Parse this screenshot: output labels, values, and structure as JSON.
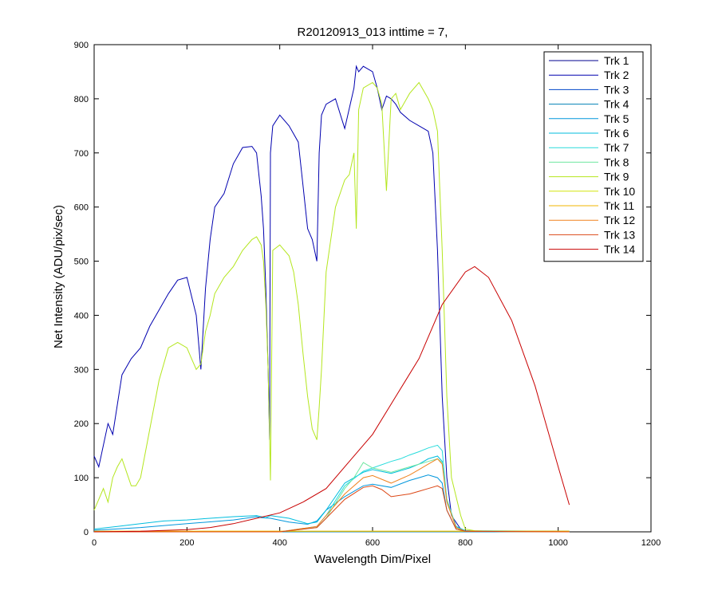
{
  "chart_data": {
    "type": "line",
    "title": "R20120913_013 inttime = 7,",
    "xlabel": "Wavelength Dim/Pixel",
    "ylabel": "Net Intensity (ADU/pix/sec)",
    "xlim": [
      0,
      1200
    ],
    "ylim": [
      0,
      900
    ],
    "xticks": [
      0,
      200,
      400,
      600,
      800,
      1000,
      1200
    ],
    "yticks": [
      0,
      100,
      200,
      300,
      400,
      500,
      600,
      700,
      800,
      900
    ],
    "grid": false,
    "legend_position": "top-right",
    "series": [
      {
        "name": "Trk 1",
        "color": "#00008f",
        "x": [
          0,
          500,
          1024
        ],
        "y": [
          0,
          0,
          0
        ]
      },
      {
        "name": "Trk 2",
        "color": "#0000af",
        "x": [
          0,
          10,
          30,
          40,
          60,
          80,
          100,
          120,
          140,
          160,
          180,
          200,
          220,
          230,
          240,
          250,
          260,
          280,
          300,
          320,
          340,
          350,
          360,
          365,
          370,
          375,
          378,
          380,
          385,
          400,
          420,
          440,
          450,
          460,
          470,
          480,
          485,
          490,
          500,
          520,
          540,
          560,
          565,
          570,
          580,
          600,
          610,
          620,
          630,
          640,
          650,
          660,
          680,
          700,
          720,
          730,
          740,
          750,
          760,
          770,
          790,
          800,
          820,
          850,
          900,
          950,
          1000,
          1024
        ],
        "y": [
          140,
          120,
          200,
          180,
          290,
          320,
          340,
          380,
          410,
          440,
          465,
          470,
          400,
          300,
          450,
          540,
          600,
          625,
          680,
          710,
          712,
          700,
          620,
          560,
          450,
          300,
          170,
          700,
          750,
          770,
          750,
          720,
          640,
          560,
          540,
          500,
          700,
          770,
          790,
          800,
          745,
          820,
          860,
          850,
          860,
          850,
          820,
          780,
          805,
          800,
          790,
          775,
          760,
          750,
          740,
          700,
          520,
          250,
          100,
          30,
          5,
          2,
          1,
          1,
          1,
          1,
          1,
          1
        ]
      },
      {
        "name": "Trk 3",
        "color": "#0046c8",
        "x": [
          0,
          500,
          1024
        ],
        "y": [
          0,
          0,
          0
        ]
      },
      {
        "name": "Trk 4",
        "color": "#0080b4",
        "x": [
          0,
          500,
          1024
        ],
        "y": [
          0,
          0,
          0
        ]
      },
      {
        "name": "Trk 5",
        "color": "#0096dc",
        "x": [
          0,
          100,
          200,
          300,
          350,
          360,
          380,
          420,
          460,
          480,
          500,
          540,
          580,
          600,
          640,
          680,
          700,
          720,
          740,
          750,
          760,
          780,
          800,
          1024
        ],
        "y": [
          3,
          8,
          15,
          22,
          28,
          26,
          25,
          18,
          14,
          20,
          40,
          65,
          85,
          88,
          82,
          95,
          100,
          105,
          100,
          90,
          40,
          5,
          1,
          1
        ]
      },
      {
        "name": "Trk 6",
        "color": "#00bede",
        "x": [
          0,
          50,
          100,
          150,
          200,
          250,
          300,
          350,
          370,
          380,
          420,
          460,
          480,
          500,
          540,
          580,
          600,
          640,
          680,
          700,
          720,
          740,
          750,
          760,
          780,
          800,
          1024
        ],
        "y": [
          5,
          10,
          15,
          20,
          22,
          25,
          28,
          30,
          26,
          30,
          25,
          15,
          18,
          40,
          90,
          110,
          115,
          108,
          118,
          125,
          135,
          140,
          130,
          60,
          10,
          2,
          1
        ]
      },
      {
        "name": "Trk 7",
        "color": "#28dcdc",
        "x": [
          0,
          400,
          480,
          500,
          540,
          580,
          600,
          640,
          660,
          680,
          700,
          720,
          740,
          750,
          760,
          780,
          800,
          1024
        ],
        "y": [
          0,
          0,
          10,
          30,
          85,
          112,
          118,
          130,
          135,
          142,
          148,
          155,
          160,
          150,
          60,
          8,
          1,
          0
        ]
      },
      {
        "name": "Trk 8",
        "color": "#6ee6a0",
        "x": [
          0,
          400,
          480,
          500,
          540,
          560,
          580,
          600,
          640,
          680,
          700,
          720,
          740,
          750,
          760,
          780,
          800,
          1024
        ],
        "y": [
          0,
          0,
          8,
          25,
          80,
          100,
          128,
          118,
          110,
          120,
          125,
          130,
          135,
          128,
          60,
          8,
          1,
          0
        ]
      },
      {
        "name": "Trk 9",
        "color": "#b4e61e",
        "x": [
          0,
          10,
          20,
          30,
          40,
          50,
          60,
          70,
          80,
          90,
          100,
          120,
          140,
          160,
          180,
          200,
          210,
          220,
          230,
          240,
          250,
          260,
          280,
          300,
          320,
          340,
          350,
          360,
          365,
          370,
          375,
          378,
          380,
          385,
          400,
          420,
          430,
          440,
          450,
          460,
          470,
          480,
          485,
          490,
          500,
          520,
          540,
          550,
          560,
          565,
          570,
          580,
          600,
          610,
          620,
          630,
          640,
          650,
          660,
          680,
          700,
          720,
          730,
          740,
          750,
          760,
          770,
          790,
          800,
          820,
          850,
          900,
          1024
        ],
        "y": [
          40,
          60,
          80,
          55,
          100,
          120,
          135,
          110,
          85,
          85,
          100,
          190,
          280,
          340,
          350,
          340,
          320,
          300,
          310,
          370,
          400,
          440,
          470,
          490,
          520,
          540,
          545,
          530,
          500,
          420,
          300,
          180,
          95,
          520,
          530,
          510,
          480,
          420,
          330,
          250,
          190,
          170,
          230,
          300,
          480,
          600,
          650,
          660,
          700,
          560,
          780,
          820,
          830,
          820,
          790,
          630,
          800,
          810,
          780,
          810,
          830,
          800,
          780,
          740,
          520,
          250,
          100,
          30,
          5,
          2,
          1,
          1,
          1
        ]
      },
      {
        "name": "Trk 10",
        "color": "#d2e60a",
        "x": [
          0,
          500,
          1024
        ],
        "y": [
          1,
          1,
          1
        ]
      },
      {
        "name": "Trk 11",
        "color": "#f0b400",
        "x": [
          0,
          500,
          1024
        ],
        "y": [
          1,
          1,
          1
        ]
      },
      {
        "name": "Trk 12",
        "color": "#f0821e",
        "x": [
          0,
          400,
          480,
          500,
          540,
          580,
          600,
          620,
          640,
          680,
          700,
          720,
          740,
          750,
          760,
          780,
          800,
          1024
        ],
        "y": [
          0,
          0,
          10,
          30,
          70,
          100,
          104,
          97,
          90,
          105,
          115,
          125,
          135,
          125,
          55,
          8,
          1,
          0
        ]
      },
      {
        "name": "Trk 13",
        "color": "#dc4614",
        "x": [
          0,
          400,
          480,
          500,
          540,
          580,
          600,
          620,
          640,
          680,
          700,
          720,
          740,
          750,
          760,
          780,
          800,
          1024
        ],
        "y": [
          0,
          0,
          8,
          25,
          60,
          82,
          85,
          78,
          65,
          70,
          75,
          80,
          85,
          80,
          40,
          5,
          1,
          0
        ]
      },
      {
        "name": "Trk 14",
        "color": "#c80000",
        "x": [
          0,
          100,
          200,
          250,
          300,
          350,
          400,
          450,
          500,
          550,
          600,
          650,
          700,
          750,
          800,
          820,
          850,
          900,
          950,
          1000,
          1024
        ],
        "y": [
          0,
          1,
          4,
          8,
          15,
          25,
          35,
          55,
          80,
          130,
          180,
          250,
          320,
          420,
          480,
          490,
          470,
          390,
          270,
          120,
          50
        ]
      }
    ]
  }
}
